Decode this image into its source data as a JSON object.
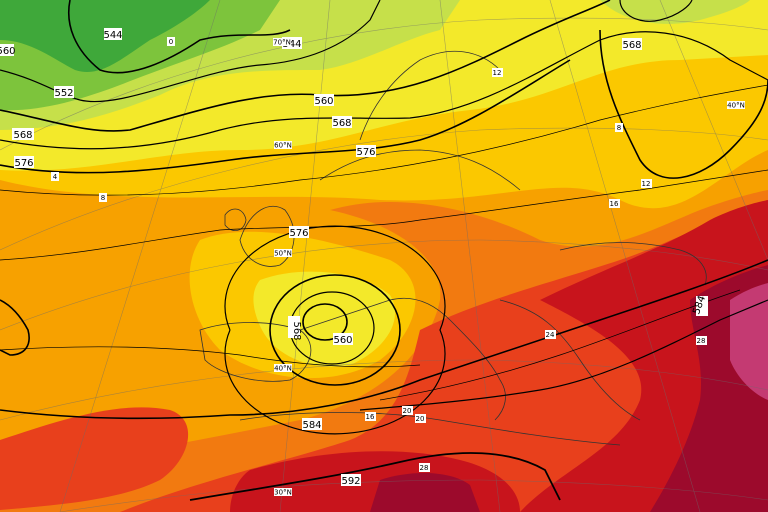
{
  "map": {
    "contour_labels": [
      "544",
      "552",
      "560",
      "568",
      "576",
      "584",
      "592"
    ],
    "thickness_labels": [
      "0",
      "4",
      "8",
      "12",
      "16",
      "20",
      "24",
      "28"
    ],
    "latitude_labels": [
      "70°N",
      "60°N",
      "50°N",
      "40°N",
      "30°N"
    ],
    "low_center_value": "560",
    "colors": {
      "green_dark": "#3fa83a",
      "green": "#7dc43c",
      "yellow_green": "#c6e04a",
      "yellow": "#f3e92a",
      "gold": "#fbc800",
      "orange": "#f7a100",
      "dark_orange": "#f27a10",
      "red": "#e8401c",
      "dark_red": "#c8141c",
      "crimson": "#9c0a2c",
      "magenta": "#c43a72"
    }
  }
}
